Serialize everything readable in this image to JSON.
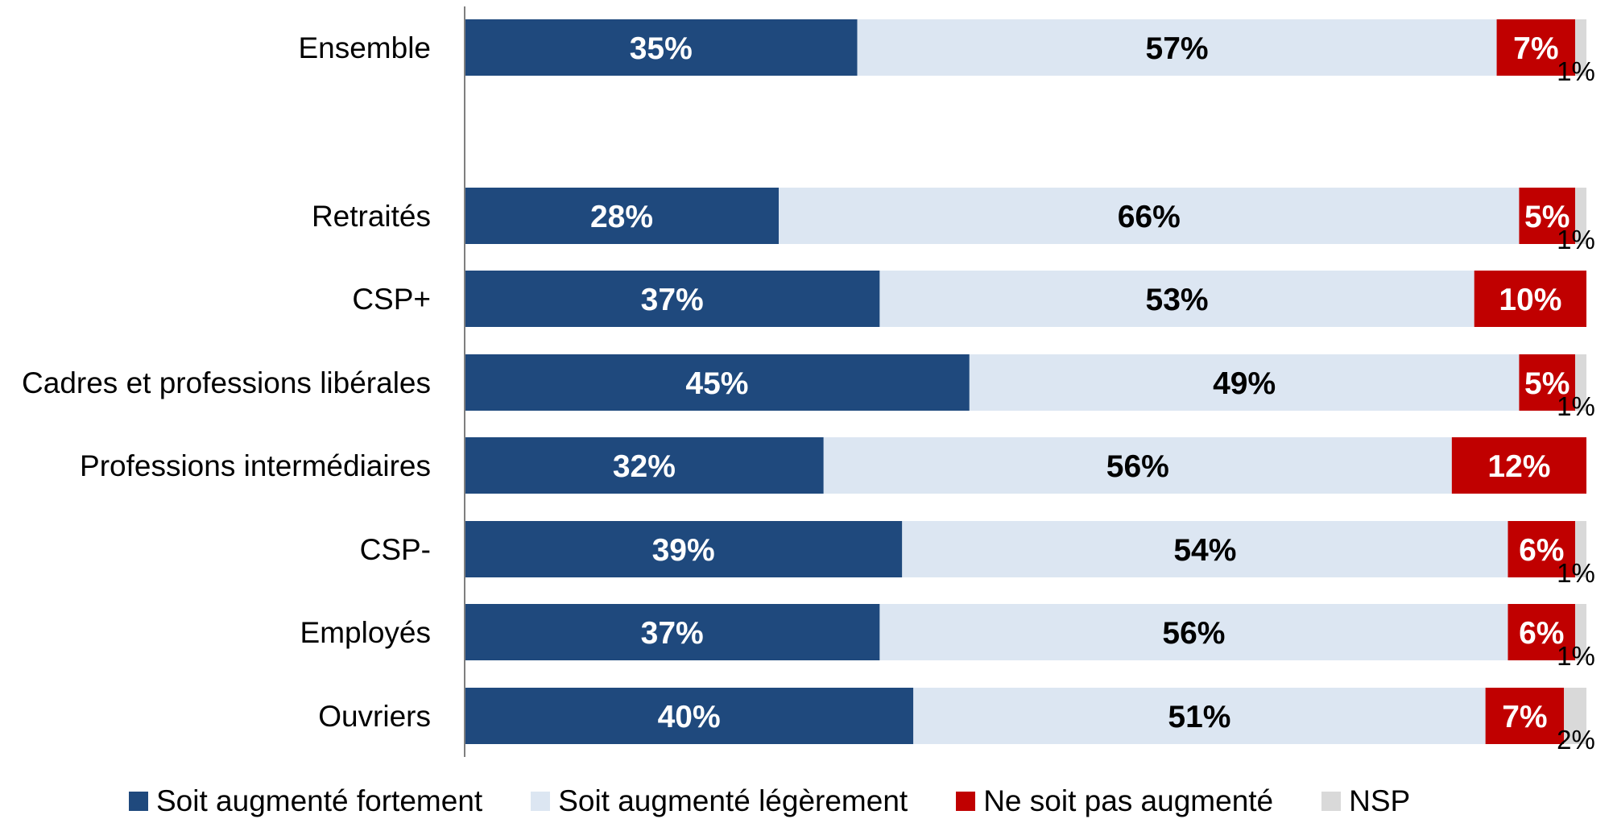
{
  "chart_data": {
    "type": "bar",
    "orientation": "horizontal",
    "stacked": true,
    "title": "",
    "xlabel": "",
    "ylabel": "",
    "xlim": [
      0,
      100
    ],
    "grid": false,
    "legend_position": "bottom",
    "categories": [
      "Ensemble",
      "Retraités",
      "CSP+",
      "Cadres et professions libérales",
      "Professions intermédiaires",
      "CSP-",
      "Employés",
      "Ouvriers"
    ],
    "series": [
      {
        "name": "Soit augmenté fortement",
        "color": "#1F497D",
        "label_color": "#FFFFFF",
        "values": [
          35,
          28,
          37,
          45,
          32,
          39,
          37,
          40
        ],
        "labels": [
          "35%",
          "28%",
          "37%",
          "45%",
          "32%",
          "39%",
          "37%",
          "40%"
        ]
      },
      {
        "name": "Soit augmenté légèrement",
        "color": "#DCE6F2",
        "label_color": "#000000",
        "values": [
          57,
          66,
          53,
          49,
          56,
          54,
          56,
          51
        ],
        "labels": [
          "57%",
          "66%",
          "53%",
          "49%",
          "56%",
          "54%",
          "56%",
          "51%"
        ]
      },
      {
        "name": "Ne soit pas augmenté",
        "color": "#C00000",
        "label_color": "#FFFFFF",
        "values": [
          7,
          5,
          10,
          5,
          12,
          6,
          6,
          7
        ],
        "labels": [
          "7%",
          "5%",
          "10%",
          "5%",
          "12%",
          "6%",
          "6%",
          "7%"
        ]
      },
      {
        "name": "NSP",
        "color": "#D9D9D9",
        "label_color": "#000000",
        "values": [
          1,
          1,
          0,
          1,
          0,
          1,
          1,
          2
        ],
        "labels": [
          "1%",
          "1%",
          "",
          "1%",
          "",
          "1%",
          "1%",
          "2%"
        ]
      }
    ]
  }
}
